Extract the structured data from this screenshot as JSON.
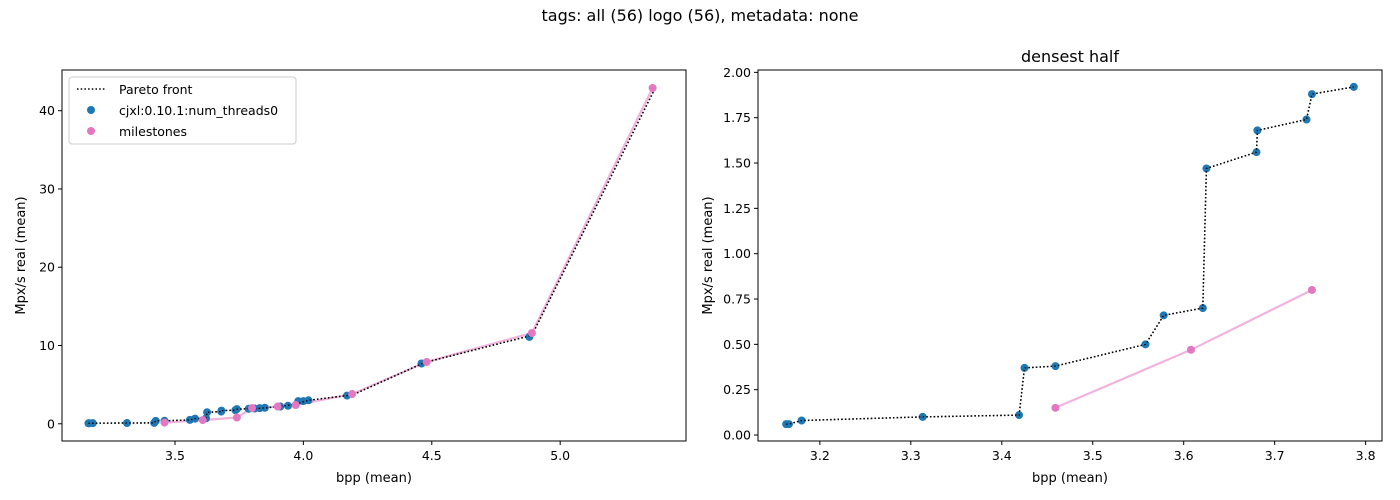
{
  "figure": {
    "title": "tags: all (56) logo (56), metadata: none"
  },
  "colors": {
    "pareto": "#000000",
    "cjxl": "#1f77b4",
    "milestones": "#e377c2",
    "milestones_line": "#f0b3dd"
  },
  "chart_data": [
    {
      "type": "scatter",
      "title": "",
      "xlabel": "bpp (mean)",
      "ylabel": "Mpx/s real (mean)",
      "xlim": [
        3.06,
        5.49
      ],
      "ylim": [
        -2.2,
        45.2
      ],
      "xticks": [
        3.5,
        4.0,
        4.5,
        5.0
      ],
      "xtick_labels": [
        "3.5",
        "4.0",
        "4.5",
        "5.0"
      ],
      "yticks": [
        0,
        10,
        20,
        30,
        40
      ],
      "ytick_labels": [
        "0",
        "10",
        "20",
        "30",
        "40"
      ],
      "grid": false,
      "legend": {
        "position": "top-left",
        "entries": [
          "Pareto front",
          "cjxl:0.10.1:num_threads0",
          "milestones"
        ]
      },
      "series": [
        {
          "name": "Pareto front",
          "kind": "line",
          "style": "dotted",
          "x": [
            3.163,
            3.166,
            3.18,
            3.313,
            3.419,
            3.425,
            3.459,
            3.558,
            3.578,
            3.621,
            3.625,
            3.68,
            3.681,
            3.735,
            3.741,
            3.787,
            3.82,
            3.86,
            3.9,
            3.95,
            3.98,
            4.0,
            4.02,
            4.17,
            4.2,
            4.47,
            4.89,
            5.37
          ],
          "y": [
            0.06,
            0.06,
            0.08,
            0.1,
            0.11,
            0.37,
            0.38,
            0.5,
            0.66,
            0.7,
            1.47,
            1.56,
            1.68,
            1.74,
            1.88,
            1.92,
            1.95,
            2.05,
            2.2,
            2.4,
            2.6,
            2.8,
            3.0,
            3.6,
            3.8,
            7.8,
            11.3,
            42.9
          ]
        },
        {
          "name": "cjxl:0.10.1:num_threads0",
          "kind": "points",
          "x": [
            3.163,
            3.166,
            3.18,
            3.313,
            3.419,
            3.425,
            3.459,
            3.558,
            3.578,
            3.621,
            3.625,
            3.68,
            3.681,
            3.735,
            3.741,
            3.787,
            3.81,
            3.83,
            3.85,
            3.91,
            3.94,
            3.98,
            4.0,
            4.02,
            4.17,
            4.46,
            4.88
          ],
          "y": [
            0.06,
            0.06,
            0.08,
            0.1,
            0.11,
            0.37,
            0.38,
            0.5,
            0.66,
            0.7,
            1.47,
            1.56,
            1.68,
            1.74,
            1.88,
            1.92,
            1.95,
            2.0,
            2.05,
            2.2,
            2.3,
            2.9,
            2.9,
            3.0,
            3.6,
            7.7,
            11.1
          ]
        },
        {
          "name": "milestones",
          "kind": "points+line",
          "x": [
            3.459,
            3.608,
            3.741,
            3.8,
            3.9,
            3.97,
            4.19,
            4.48,
            4.89,
            5.36
          ],
          "y": [
            0.15,
            0.47,
            0.8,
            2.0,
            2.2,
            2.4,
            3.8,
            7.9,
            11.6,
            42.9
          ]
        }
      ]
    },
    {
      "type": "scatter",
      "title": "densest half",
      "xlabel": "bpp (mean)",
      "ylabel": "Mpx/s real (mean)",
      "xlim": [
        3.132,
        3.818
      ],
      "ylim": [
        -0.033,
        2.013
      ],
      "xticks": [
        3.2,
        3.3,
        3.4,
        3.5,
        3.6,
        3.7,
        3.8
      ],
      "xtick_labels": [
        "3.2",
        "3.3",
        "3.4",
        "3.5",
        "3.6",
        "3.7",
        "3.8"
      ],
      "yticks": [
        0.0,
        0.25,
        0.5,
        0.75,
        1.0,
        1.25,
        1.5,
        1.75,
        2.0
      ],
      "ytick_labels": [
        "0.00",
        "0.25",
        "0.50",
        "0.75",
        "1.00",
        "1.25",
        "1.50",
        "1.75",
        "2.00"
      ],
      "grid": false,
      "legend": null,
      "series": [
        {
          "name": "Pareto front",
          "kind": "line",
          "style": "dotted",
          "x": [
            3.163,
            3.166,
            3.18,
            3.313,
            3.419,
            3.425,
            3.459,
            3.558,
            3.578,
            3.621,
            3.625,
            3.68,
            3.681,
            3.735,
            3.741,
            3.787
          ],
          "y": [
            0.06,
            0.06,
            0.08,
            0.1,
            0.11,
            0.37,
            0.38,
            0.5,
            0.66,
            0.7,
            1.47,
            1.56,
            1.68,
            1.74,
            1.88,
            1.92
          ]
        },
        {
          "name": "cjxl:0.10.1:num_threads0",
          "kind": "points",
          "x": [
            3.163,
            3.166,
            3.18,
            3.313,
            3.419,
            3.425,
            3.459,
            3.558,
            3.578,
            3.621,
            3.625,
            3.68,
            3.681,
            3.735,
            3.741,
            3.787
          ],
          "y": [
            0.06,
            0.06,
            0.08,
            0.1,
            0.11,
            0.37,
            0.38,
            0.5,
            0.66,
            0.7,
            1.47,
            1.56,
            1.68,
            1.74,
            1.88,
            1.92
          ]
        },
        {
          "name": "milestones",
          "kind": "points+line",
          "x": [
            3.459,
            3.608,
            3.741
          ],
          "y": [
            0.15,
            0.47,
            0.8
          ]
        }
      ]
    }
  ]
}
